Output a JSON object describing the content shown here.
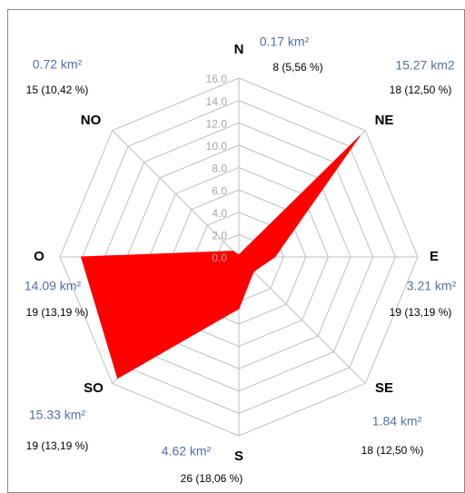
{
  "chart_data": {
    "type": "radar",
    "categories": [
      "N",
      "NE",
      "E",
      "SE",
      "S",
      "SO",
      "O",
      "NO"
    ],
    "series": [
      {
        "color": "#ff0000",
        "values": [
          0.17,
          15.27,
          3.21,
          1.84,
          4.62,
          15.33,
          14.09,
          0.72
        ],
        "value_labels": [
          "0.17 km²",
          "15.27 km2",
          "3.21 km²",
          "1.84 km²",
          "4.62 km²",
          "15.33 km²",
          "14.09 km²",
          "0.72 km²"
        ]
      }
    ],
    "annotations": [
      "8 (5,56 %)",
      "18 (12,50 %)",
      "19 (13,19 %)",
      "18 (12,50 %)",
      "26 (18,06 %)",
      "19 (13,19 %)",
      "19 (13,19 %)",
      "15 (10,42 %)"
    ],
    "ylim": [
      0,
      16
    ],
    "yticks": [
      {
        "value": 0,
        "label": "0.0"
      },
      {
        "value": 2,
        "label": "2.0"
      },
      {
        "value": 4,
        "label": "4.0"
      },
      {
        "value": 6,
        "label": "6.0"
      },
      {
        "value": 8,
        "label": "8.0"
      },
      {
        "value": 10,
        "label": "10.0"
      },
      {
        "value": 12,
        "label": "12.0"
      },
      {
        "value": 14,
        "label": "14.0"
      },
      {
        "value": 16,
        "label": "16.0"
      }
    ],
    "grid": true
  }
}
